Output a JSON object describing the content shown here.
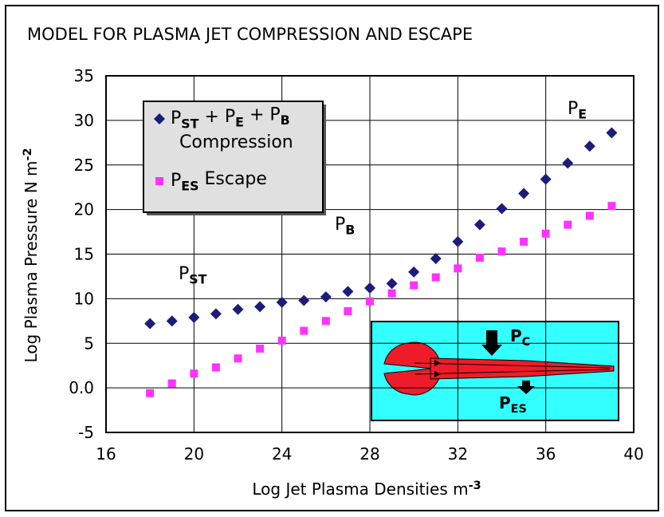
{
  "chart_data": {
    "type": "scatter",
    "title": "MODEL FOR PLASMA JET COMPRESSION AND ESCAPE",
    "x_label": [
      "Log Jet Plasma Densities m",
      "-3"
    ],
    "y_label": [
      "Log Plasma Pressure N m",
      "-2"
    ],
    "xlim": [
      16,
      40
    ],
    "xticks": [
      16,
      20,
      24,
      28,
      32,
      36,
      40
    ],
    "ylim": [
      -5,
      35
    ],
    "yticks": [
      -5,
      {
        "value": 0,
        "label": "0.0"
      },
      5,
      10,
      15,
      20,
      25,
      30,
      35
    ],
    "grid": true,
    "legend": "upper left",
    "x": [
      18,
      19,
      20,
      21,
      22,
      23,
      24,
      25,
      26,
      27,
      28,
      29,
      30,
      31,
      32,
      33,
      34,
      35,
      36,
      37,
      38,
      39
    ],
    "series": [
      {
        "name": [
          [
            "P",
            "ST",
            " + P",
            "E",
            " + P",
            "B"
          ],
          [
            "Compression"
          ]
        ],
        "color": "#1c1c7a",
        "marker": "diamond",
        "values": [
          7.2,
          7.5,
          7.9,
          8.3,
          8.8,
          9.1,
          9.6,
          9.8,
          10.2,
          10.8,
          11.2,
          11.7,
          13.0,
          14.5,
          16.4,
          18.3,
          20.1,
          21.8,
          23.4,
          25.2,
          27.1,
          28.6
        ]
      },
      {
        "name": [
          [
            "P",
            "ES",
            " Escape"
          ]
        ],
        "color": "#ff33ff",
        "marker": "square",
        "values": [
          -0.6,
          0.5,
          1.6,
          2.3,
          3.3,
          4.4,
          5.3,
          6.4,
          7.5,
          8.6,
          9.7,
          10.6,
          11.5,
          12.4,
          13.4,
          14.6,
          15.3,
          16.4,
          17.3,
          18.3,
          19.3,
          20.4
        ]
      }
    ],
    "annotations": [
      [
        "P",
        "ST"
      ],
      [
        "P",
        "B"
      ],
      [
        "P",
        "E"
      ]
    ],
    "inset_labels": [
      [
        "P",
        "C"
      ],
      [
        "P",
        "ES"
      ]
    ]
  }
}
